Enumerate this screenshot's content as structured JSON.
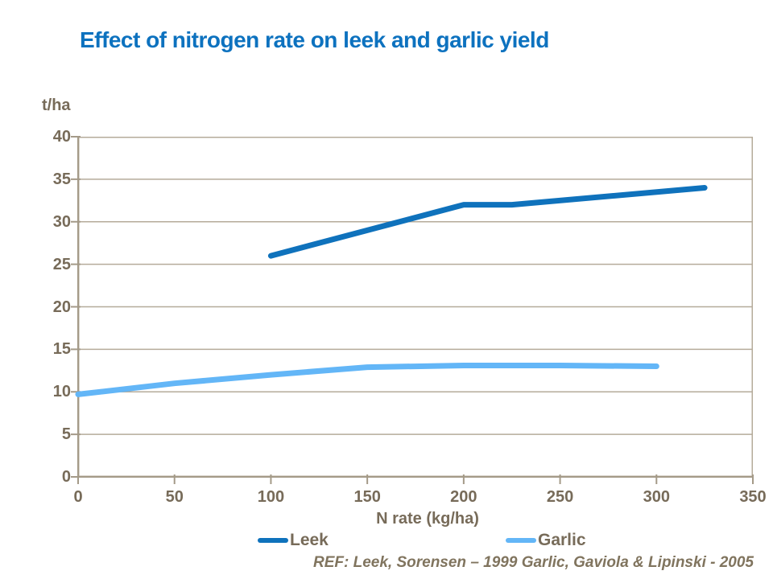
{
  "header": {
    "title": "Effect of nitrogen rate on leek and garlic yield"
  },
  "footer": {
    "ref_note": "REF: Leek, Sorensen – 1999 Garlic, Gaviola & Lipinski - 2005"
  },
  "colors": {
    "background": "#ffffff",
    "title": "#0d72bf",
    "axis_text": "#776b59",
    "ref_text": "#80745e",
    "grid": "#b5ab9a",
    "axis_line": "#a49a88",
    "leek": "#0f72bc",
    "garlic": "#63b6f7"
  },
  "chart_data": {
    "type": "line",
    "title": "Effect of nitrogen rate on leek and garlic yield",
    "xlabel": "N rate (kg/ha)",
    "ylabel": "t/ha",
    "xlim": [
      0,
      350
    ],
    "ylim": [
      0,
      40
    ],
    "xticks": [
      0,
      50,
      100,
      150,
      200,
      250,
      300,
      350
    ],
    "yticks": [
      0,
      5,
      10,
      15,
      20,
      25,
      30,
      35,
      40
    ],
    "grid": "horizontal",
    "legend_position": "bottom",
    "series": [
      {
        "name": "Leek",
        "color": "#0f72bc",
        "points": [
          [
            100,
            26
          ],
          [
            200,
            32
          ],
          [
            225,
            32
          ],
          [
            325,
            34
          ]
        ]
      },
      {
        "name": "Garlic",
        "color": "#63b6f7",
        "points": [
          [
            0,
            9.7
          ],
          [
            50,
            11
          ],
          [
            100,
            12
          ],
          [
            150,
            12.9
          ],
          [
            200,
            13.1
          ],
          [
            250,
            13.1
          ],
          [
            300,
            13
          ]
        ]
      }
    ]
  }
}
